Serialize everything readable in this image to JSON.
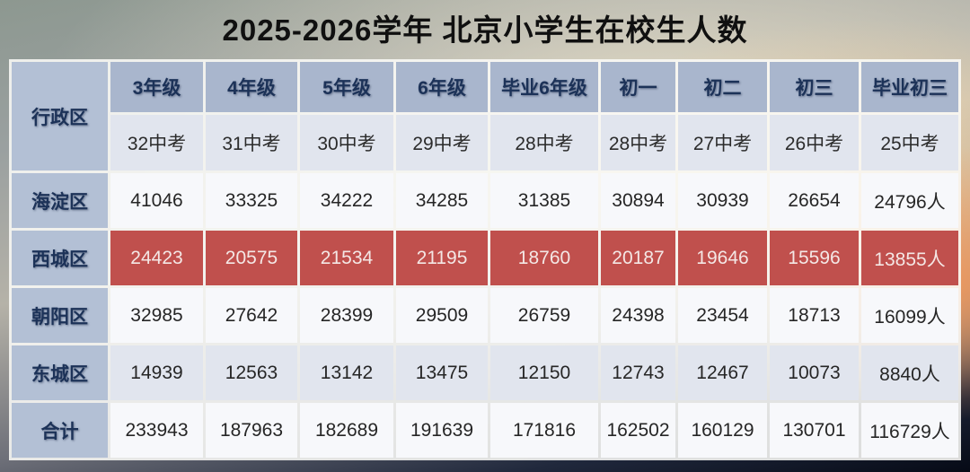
{
  "title": "2025-2026学年 北京小学生在校生人数",
  "table": {
    "corner_header": "行政区",
    "grade_headers": [
      "3年级",
      "4年级",
      "5年级",
      "6年级",
      "毕业6年级",
      "初一",
      "初二",
      "初三",
      "毕业初三"
    ],
    "exam_year_headers": [
      "32中考",
      "31中考",
      "30中考",
      "29中考",
      "28中考",
      "28中考",
      "27中考",
      "26中考",
      "25中考"
    ],
    "rows": [
      {
        "label": "海淀区",
        "highlight": false,
        "values": [
          "41046",
          "33325",
          "34222",
          "34285",
          "31385",
          "30894",
          "30939",
          "26654",
          "24796人"
        ]
      },
      {
        "label": "西城区",
        "highlight": true,
        "values": [
          "24423",
          "20575",
          "21534",
          "21195",
          "18760",
          "20187",
          "19646",
          "15596",
          "13855人"
        ]
      },
      {
        "label": "朝阳区",
        "highlight": false,
        "values": [
          "32985",
          "27642",
          "28399",
          "29509",
          "26759",
          "24398",
          "23454",
          "18713",
          "16099人"
        ]
      },
      {
        "label": "东城区",
        "highlight": false,
        "values": [
          "14939",
          "12563",
          "13142",
          "13475",
          "12150",
          "12743",
          "12467",
          "10073",
          "8840人"
        ]
      },
      {
        "label": "合计",
        "highlight": false,
        "values": [
          "233943",
          "187963",
          "182689",
          "191639",
          "171816",
          "162502",
          "160129",
          "130701",
          "116729人"
        ]
      }
    ],
    "colors": {
      "header_bg": "#a9b6cd",
      "label_bg": "#b3c0d5",
      "header_text": "#1c3258",
      "highlight_bg": "#c0504d",
      "highlight_text": "#f4e7e5",
      "band_light": "#f7f8fb",
      "band_dark": "#e1e5ee",
      "data_text": "#262626",
      "title_color": "#101010"
    }
  }
}
